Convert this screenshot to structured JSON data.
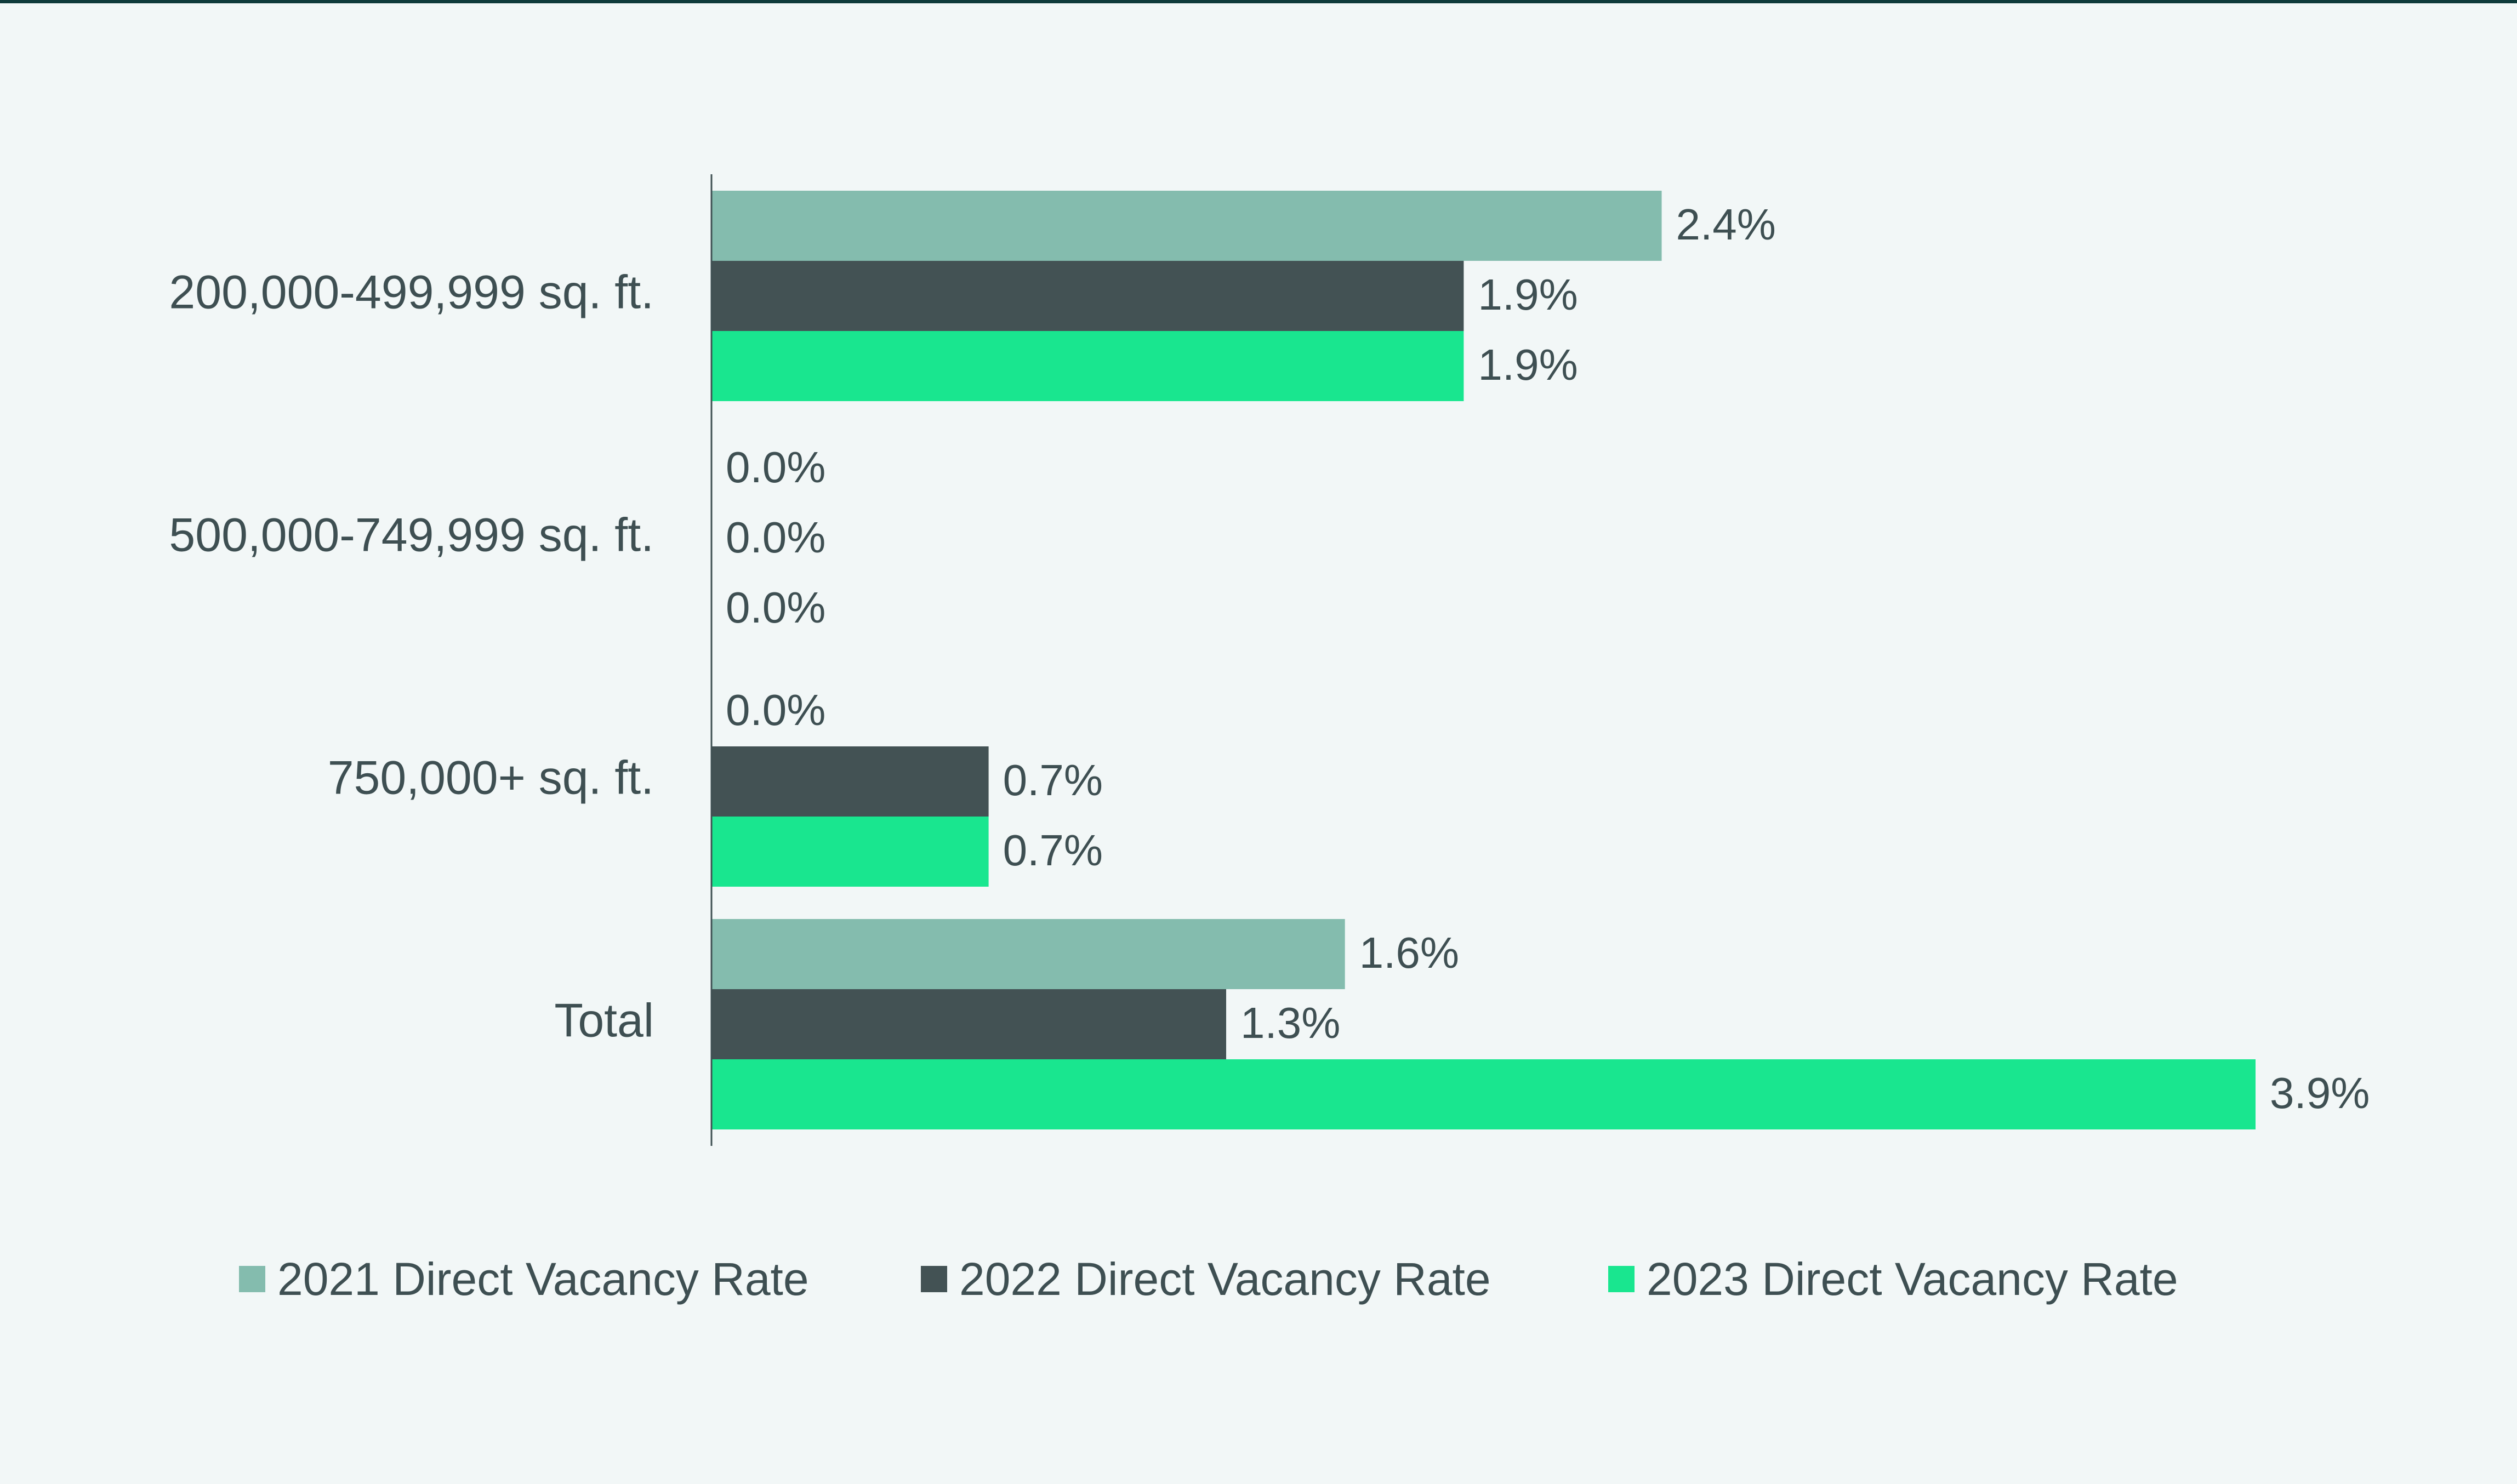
{
  "chart_data": {
    "type": "bar",
    "orientation": "horizontal",
    "title": "",
    "xlabel": "",
    "ylabel": "",
    "categories": [
      "200,000-499,999 sq. ft.",
      "500,000-749,999 sq. ft.",
      "750,000+ sq. ft.",
      "Total"
    ],
    "series": [
      {
        "name": "2021 Direct Vacancy Rate",
        "color": "#84bcae",
        "values": [
          2.4,
          0.0,
          0.0,
          1.6
        ],
        "labels": [
          "2.4%",
          "0.0%",
          "0.0%",
          "1.6%"
        ]
      },
      {
        "name": "2022 Direct Vacancy Rate",
        "color": "#435254",
        "values": [
          1.9,
          0.0,
          0.7,
          1.3
        ],
        "labels": [
          "1.9%",
          "0.0%",
          "0.7%",
          "1.3%"
        ]
      },
      {
        "name": "2023 Direct Vacancy Rate",
        "color": "#19e68f",
        "values": [
          1.9,
          0.0,
          0.7,
          3.9
        ],
        "labels": [
          "1.9%",
          "0.0%",
          "0.7%",
          "3.9%"
        ]
      }
    ],
    "xlim": [
      0,
      4.25
    ],
    "grid": false,
    "legend_position": "bottom"
  }
}
